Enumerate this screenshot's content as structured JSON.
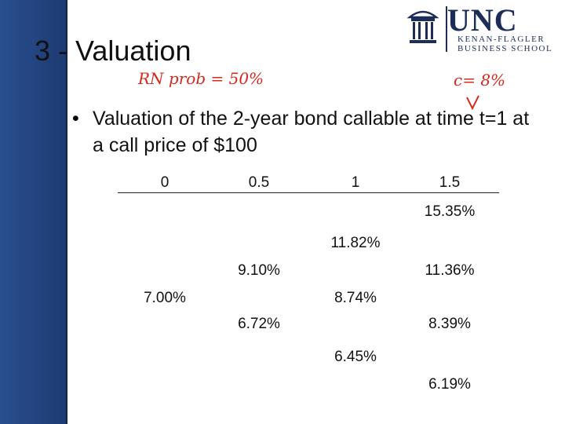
{
  "header": {
    "title": "3 - Valuation",
    "logo": {
      "name": "UNC",
      "line1": "KENAN-FLAGLER",
      "line2": "BUSINESS SCHOOL"
    }
  },
  "annotations": [
    "RN prob = 50%",
    "c= 8%"
  ],
  "bullet": "Valuation of the 2-year bond callable at time t=1 at a call price of $100",
  "tree": {
    "times": [
      "0",
      "0.5",
      "1",
      "1.5"
    ],
    "rates": [
      [
        "7.00%"
      ],
      [
        "9.10%",
        "6.72%"
      ],
      [
        "11.82%",
        "8.74%",
        "6.45%"
      ],
      [
        "15.35%",
        "11.36%",
        "8.39%",
        "6.19%"
      ]
    ]
  }
}
